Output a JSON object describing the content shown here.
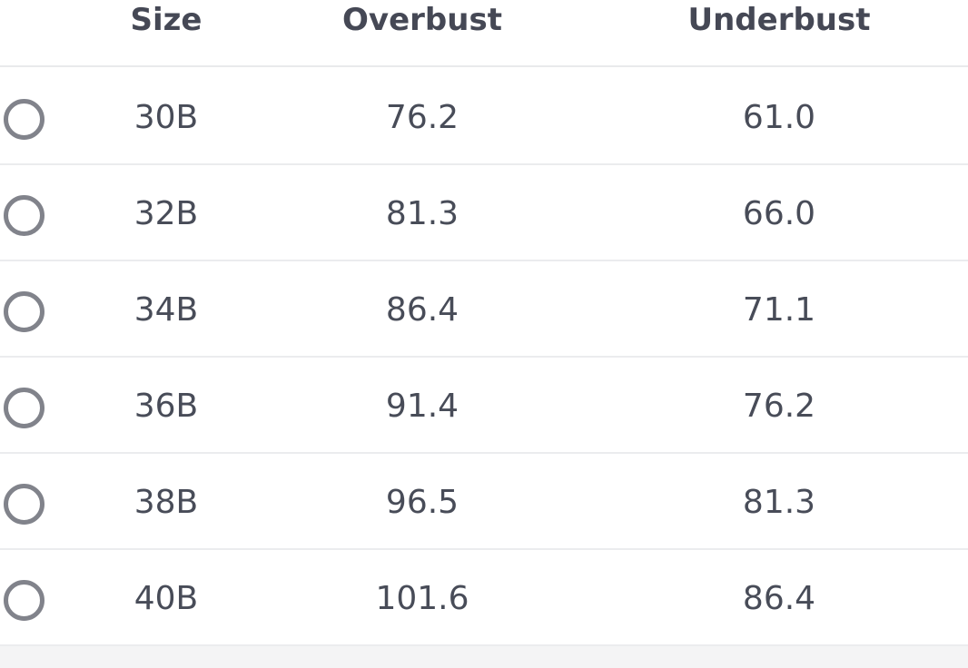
{
  "table": {
    "headers": {
      "size": "Size",
      "overbust": "Overbust",
      "underbust": "Underbust"
    },
    "rows": [
      {
        "size": "30B",
        "overbust": "76.2",
        "underbust": "61.0",
        "selected": false
      },
      {
        "size": "32B",
        "overbust": "81.3",
        "underbust": "66.0",
        "selected": false
      },
      {
        "size": "34B",
        "overbust": "86.4",
        "underbust": "71.1",
        "selected": false
      },
      {
        "size": "36B",
        "overbust": "91.4",
        "underbust": "76.2",
        "selected": false
      },
      {
        "size": "38B",
        "overbust": "96.5",
        "underbust": "81.3",
        "selected": false
      },
      {
        "size": "40B",
        "overbust": "101.6",
        "underbust": "86.4",
        "selected": false
      }
    ]
  },
  "colors": {
    "text": "#464b57",
    "header_text": "#454855",
    "divider": "#ebecee",
    "radio_border": "#81838b",
    "footer_background": "#f4f4f5"
  }
}
